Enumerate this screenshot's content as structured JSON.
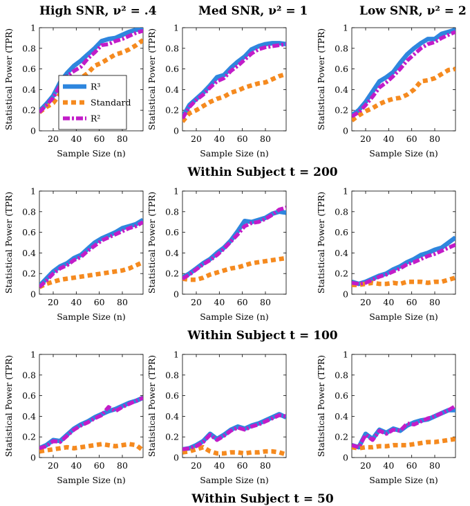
{
  "column_titles": [
    {
      "name": "High SNR",
      "eq": "ν² = .4"
    },
    {
      "name": "Med SNR",
      "eq": "ν² = 1"
    },
    {
      "name": "Low SNR",
      "eq": "ν² = 2"
    }
  ],
  "row_titles": [
    "Within Subject t = 200",
    "Within Subject t = 100",
    "Within Subject t = 50"
  ],
  "legend": [
    "R³",
    "Standard",
    "R²"
  ],
  "colors": {
    "R3": "#2e86de",
    "Standard": "#f58a1f",
    "R2": "#c21cc8"
  },
  "chart_data": {
    "type": "line",
    "xlabel": "Sample Size (n)",
    "ylabel": "Statistical Power (TPR)",
    "xlim": [
      8,
      98
    ],
    "ylim": [
      0,
      1
    ],
    "xticks": [
      20,
      40,
      60,
      80
    ],
    "yticks": [
      0,
      0.2,
      0.4,
      0.6,
      0.8,
      1
    ],
    "x": [
      8,
      14,
      20,
      26,
      32,
      38,
      44,
      50,
      56,
      62,
      68,
      74,
      80,
      86,
      92,
      98
    ],
    "panels": [
      {
        "row": 0,
        "col": 0,
        "series": [
          {
            "name": "R3",
            "values": [
              0.19,
              0.26,
              0.34,
              0.47,
              0.56,
              0.63,
              0.68,
              0.74,
              0.8,
              0.87,
              0.89,
              0.9,
              0.93,
              0.96,
              0.98,
              0.98
            ]
          },
          {
            "name": "Standard",
            "values": [
              0.18,
              0.23,
              0.27,
              0.36,
              0.4,
              0.49,
              0.51,
              0.56,
              0.63,
              0.66,
              0.7,
              0.74,
              0.76,
              0.79,
              0.83,
              0.88
            ]
          },
          {
            "name": "R2",
            "values": [
              0.18,
              0.25,
              0.32,
              0.44,
              0.53,
              0.58,
              0.62,
              0.7,
              0.76,
              0.83,
              0.84,
              0.87,
              0.89,
              0.92,
              0.95,
              0.97
            ]
          }
        ]
      },
      {
        "row": 0,
        "col": 1,
        "series": [
          {
            "name": "R3",
            "values": [
              0.13,
              0.25,
              0.31,
              0.37,
              0.44,
              0.52,
              0.54,
              0.61,
              0.67,
              0.72,
              0.79,
              0.82,
              0.84,
              0.85,
              0.85,
              0.84
            ]
          },
          {
            "name": "Standard",
            "values": [
              0.09,
              0.17,
              0.2,
              0.24,
              0.28,
              0.31,
              0.33,
              0.37,
              0.39,
              0.42,
              0.44,
              0.46,
              0.47,
              0.5,
              0.53,
              0.55
            ]
          },
          {
            "name": "R2",
            "values": [
              0.12,
              0.23,
              0.3,
              0.35,
              0.42,
              0.48,
              0.51,
              0.58,
              0.63,
              0.69,
              0.75,
              0.79,
              0.81,
              0.82,
              0.83,
              0.84
            ]
          }
        ]
      },
      {
        "row": 0,
        "col": 2,
        "series": [
          {
            "name": "R3",
            "values": [
              0.15,
              0.2,
              0.28,
              0.38,
              0.48,
              0.52,
              0.57,
              0.66,
              0.74,
              0.8,
              0.85,
              0.89,
              0.89,
              0.94,
              0.96,
              0.98
            ]
          },
          {
            "name": "Standard",
            "values": [
              0.1,
              0.15,
              0.19,
              0.22,
              0.26,
              0.29,
              0.31,
              0.32,
              0.35,
              0.4,
              0.48,
              0.49,
              0.51,
              0.55,
              0.59,
              0.6
            ]
          },
          {
            "name": "R2",
            "values": [
              0.14,
              0.18,
              0.25,
              0.33,
              0.42,
              0.47,
              0.53,
              0.6,
              0.68,
              0.74,
              0.8,
              0.84,
              0.86,
              0.9,
              0.93,
              0.96
            ]
          }
        ]
      },
      {
        "row": 1,
        "col": 0,
        "series": [
          {
            "name": "R3",
            "values": [
              0.08,
              0.15,
              0.22,
              0.27,
              0.3,
              0.35,
              0.38,
              0.44,
              0.5,
              0.54,
              0.57,
              0.6,
              0.64,
              0.66,
              0.68,
              0.72
            ]
          },
          {
            "name": "Standard",
            "values": [
              0.07,
              0.1,
              0.12,
              0.14,
              0.15,
              0.16,
              0.17,
              0.18,
              0.19,
              0.2,
              0.21,
              0.22,
              0.23,
              0.25,
              0.28,
              0.31
            ]
          },
          {
            "name": "R2",
            "values": [
              0.07,
              0.13,
              0.2,
              0.25,
              0.28,
              0.33,
              0.36,
              0.42,
              0.47,
              0.52,
              0.55,
              0.58,
              0.61,
              0.64,
              0.66,
              0.7
            ]
          }
        ]
      },
      {
        "row": 1,
        "col": 1,
        "series": [
          {
            "name": "R3",
            "values": [
              0.16,
              0.2,
              0.25,
              0.3,
              0.34,
              0.4,
              0.45,
              0.52,
              0.61,
              0.71,
              0.7,
              0.72,
              0.74,
              0.78,
              0.8,
              0.79
            ]
          },
          {
            "name": "Standard",
            "values": [
              0.15,
              0.14,
              0.14,
              0.16,
              0.19,
              0.21,
              0.23,
              0.25,
              0.26,
              0.28,
              0.3,
              0.31,
              0.32,
              0.33,
              0.34,
              0.35
            ]
          },
          {
            "name": "R2",
            "values": [
              0.15,
              0.19,
              0.24,
              0.29,
              0.33,
              0.38,
              0.44,
              0.51,
              0.58,
              0.66,
              0.69,
              0.7,
              0.73,
              0.77,
              0.82,
              0.84
            ]
          }
        ]
      },
      {
        "row": 1,
        "col": 2,
        "series": [
          {
            "name": "R3",
            "values": [
              0.12,
              0.1,
              0.12,
              0.15,
              0.18,
              0.2,
              0.24,
              0.27,
              0.31,
              0.34,
              0.38,
              0.4,
              0.43,
              0.45,
              0.5,
              0.55
            ]
          },
          {
            "name": "Standard",
            "values": [
              0.09,
              0.09,
              0.1,
              0.11,
              0.1,
              0.1,
              0.11,
              0.1,
              0.12,
              0.12,
              0.12,
              0.11,
              0.12,
              0.12,
              0.14,
              0.16
            ]
          },
          {
            "name": "R2",
            "values": [
              0.11,
              0.1,
              0.11,
              0.14,
              0.17,
              0.19,
              0.22,
              0.25,
              0.29,
              0.31,
              0.34,
              0.37,
              0.39,
              0.42,
              0.45,
              0.48
            ]
          }
        ]
      },
      {
        "row": 2,
        "col": 0,
        "series": [
          {
            "name": "R3",
            "values": [
              0.09,
              0.12,
              0.17,
              0.16,
              0.22,
              0.28,
              0.32,
              0.35,
              0.39,
              0.42,
              0.45,
              0.47,
              0.5,
              0.53,
              0.55,
              0.58
            ]
          },
          {
            "name": "Standard",
            "values": [
              0.06,
              0.07,
              0.08,
              0.09,
              0.1,
              0.09,
              0.1,
              0.11,
              0.12,
              0.13,
              0.12,
              0.11,
              0.12,
              0.13,
              0.12,
              0.07
            ]
          },
          {
            "name": "R2",
            "values": [
              0.09,
              0.11,
              0.16,
              0.15,
              0.21,
              0.27,
              0.31,
              0.34,
              0.38,
              0.41,
              0.49,
              0.45,
              0.49,
              0.52,
              0.55,
              0.58
            ]
          }
        ]
      },
      {
        "row": 2,
        "col": 1,
        "series": [
          {
            "name": "R3",
            "values": [
              0.08,
              0.09,
              0.12,
              0.16,
              0.23,
              0.18,
              0.22,
              0.27,
              0.3,
              0.28,
              0.31,
              0.33,
              0.36,
              0.39,
              0.42,
              0.39
            ]
          },
          {
            "name": "Standard",
            "values": [
              0.05,
              0.06,
              0.08,
              0.1,
              0.06,
              0.04,
              0.04,
              0.05,
              0.05,
              0.04,
              0.05,
              0.05,
              0.06,
              0.06,
              0.05,
              0.03
            ]
          },
          {
            "name": "R2",
            "values": [
              0.08,
              0.09,
              0.11,
              0.15,
              0.22,
              0.17,
              0.21,
              0.26,
              0.29,
              0.27,
              0.3,
              0.32,
              0.35,
              0.38,
              0.41,
              0.4
            ]
          }
        ]
      },
      {
        "row": 2,
        "col": 2,
        "series": [
          {
            "name": "R3",
            "values": [
              0.12,
              0.1,
              0.23,
              0.18,
              0.27,
              0.24,
              0.28,
              0.26,
              0.31,
              0.34,
              0.36,
              0.37,
              0.4,
              0.43,
              0.46,
              0.46
            ]
          },
          {
            "name": "Standard",
            "values": [
              0.1,
              0.09,
              0.1,
              0.1,
              0.11,
              0.11,
              0.12,
              0.12,
              0.12,
              0.13,
              0.14,
              0.15,
              0.15,
              0.16,
              0.17,
              0.18
            ]
          },
          {
            "name": "R2",
            "values": [
              0.12,
              0.1,
              0.22,
              0.17,
              0.26,
              0.23,
              0.27,
              0.26,
              0.33,
              0.32,
              0.35,
              0.38,
              0.4,
              0.43,
              0.46,
              0.5
            ]
          }
        ]
      }
    ]
  }
}
